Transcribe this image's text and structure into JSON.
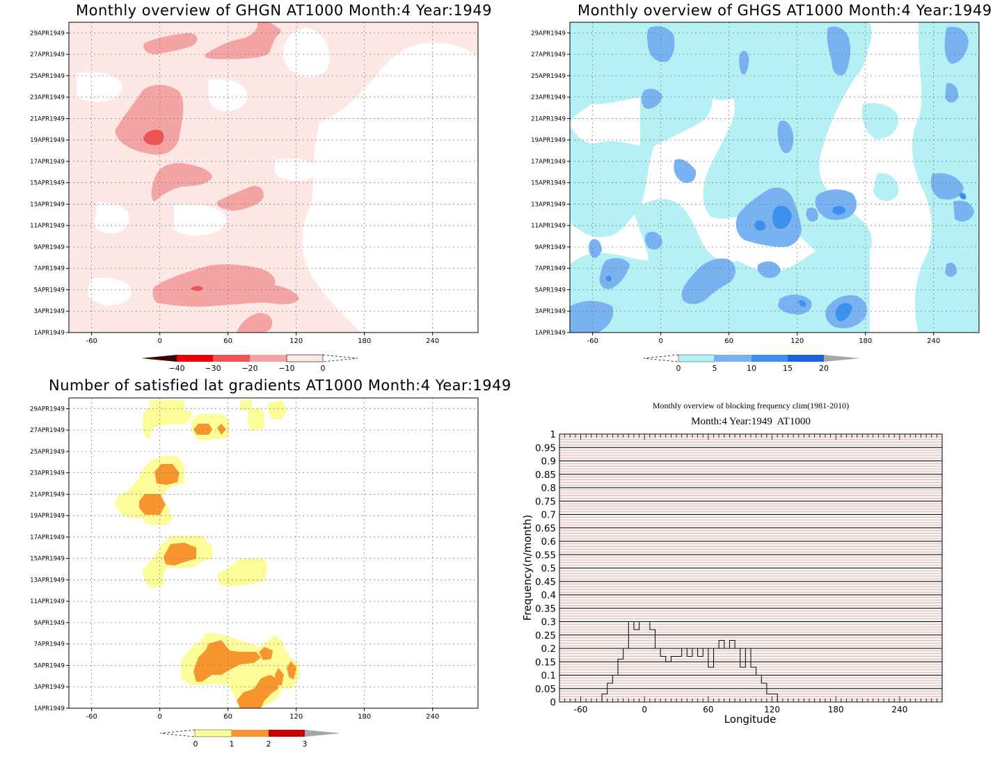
{
  "page": {
    "background": "#ffffff"
  },
  "panels": {
    "ghgn": {
      "title": "Monthly overview of GHGN AT1000 Month:4 Year:1949",
      "colorbar": {
        "labels": [
          "−40",
          "−30",
          "−20",
          "−10",
          "0"
        ],
        "colors": [
          "#3b0000",
          "#e8000b",
          "#ef5454",
          "#f5a4a4",
          "#fde8e6"
        ]
      }
    },
    "ghgs": {
      "title": "Monthly overview of GHGS AT1000 Month:4 Year:1949",
      "colorbar": {
        "labels": [
          "0",
          "5",
          "10",
          "15",
          "20"
        ],
        "colors": [
          "#b5f0f5",
          "#78b2f0",
          "#3d8ff0",
          "#1e64dc",
          "#a7a7a7"
        ]
      }
    },
    "gradients": {
      "title": "Number of satisfied lat gradients AT1000 Month:4 Year:1949",
      "colorbar": {
        "labels": [
          "0",
          "1",
          "2",
          "3"
        ],
        "colors": [
          "#fcfc99",
          "#f7962e",
          "#c80000",
          "#a7a7a7"
        ]
      }
    },
    "blocking": {
      "title": "Monthly overview of blocking frequency clim(1981-2010)",
      "subtitle": "Month:4 Year:1949  AT1000"
    }
  },
  "hovmoller_axes": {
    "x_ticks": [
      "-60",
      "0",
      "60",
      "120",
      "180",
      "240"
    ],
    "x_tick_values": [
      -60,
      0,
      60,
      120,
      180,
      240
    ],
    "xlim": [
      -80,
      280
    ],
    "y_ticks": [
      "1APR1949",
      "3APR1949",
      "5APR1949",
      "7APR1949",
      "9APR1949",
      "11APR1949",
      "13APR1949",
      "15APR1949",
      "17APR1949",
      "19APR1949",
      "21APR1949",
      "23APR1949",
      "25APR1949",
      "27APR1949",
      "29APR1949"
    ],
    "y_tick_days": [
      1,
      3,
      5,
      7,
      9,
      11,
      13,
      15,
      17,
      19,
      21,
      23,
      25,
      27,
      29
    ],
    "ylim": [
      1,
      30
    ]
  },
  "chart_data": [
    {
      "type": "heatmap",
      "title": "Monthly overview of GHGN AT1000 Month:4 Year:1949",
      "variable": "GHGN",
      "xlim": [
        -80,
        280
      ],
      "ylim": [
        "1APR1949",
        "30APR1949"
      ],
      "levels": [
        -40,
        -30,
        -20,
        -10,
        0
      ],
      "regions": [
        {
          "level": "-20 to -10",
          "lon": [
            -40,
            20
          ],
          "date": [
            "19APR1949",
            "22APR1949"
          ]
        },
        {
          "level": "-30 to -20",
          "lon": [
            -15,
            0
          ],
          "date": [
            "19APR1949",
            "20APR1949"
          ]
        },
        {
          "level": "-20 to -10",
          "lon": [
            0,
            120
          ],
          "date": [
            "2APR1949",
            "7APR1949"
          ]
        },
        {
          "level": "-20 to -10",
          "lon": [
            5,
            90
          ],
          "date": [
            "13APR1949",
            "16APR1949"
          ]
        },
        {
          "level": "-20 to -10",
          "lon": [
            -15,
            110
          ],
          "date": [
            "27APR1949",
            "30APR1949"
          ]
        }
      ]
    },
    {
      "type": "heatmap",
      "title": "Monthly overview of GHGS AT1000 Month:4 Year:1949",
      "variable": "GHGS",
      "xlim": [
        -80,
        280
      ],
      "ylim": [
        "1APR1949",
        "30APR1949"
      ],
      "levels": [
        0,
        5,
        10,
        15,
        20
      ],
      "regions": [
        {
          "level": "5 to 10",
          "lon": [
            70,
            130
          ],
          "date": [
            "10APR1949",
            "14APR1949"
          ]
        },
        {
          "level": "10 to 15",
          "lon": [
            100,
            115
          ],
          "date": [
            "11APR1949",
            "12APR1949"
          ]
        },
        {
          "level": "5 to 10",
          "lon": [
            150,
            180
          ],
          "date": [
            "1APR1949",
            "3APR1949"
          ]
        },
        {
          "level": "10 to 15",
          "lon": [
            155,
            170
          ],
          "date": [
            "2APR1949",
            "3APR1949"
          ]
        },
        {
          "level": "5 to 10",
          "lon": [
            -10,
            15
          ],
          "date": [
            "26APR1949",
            "30APR1949"
          ]
        }
      ]
    },
    {
      "type": "heatmap",
      "title": "Number of satisfied lat gradients AT1000 Month:4 Year:1949",
      "variable": "satisfied lat gradients",
      "xlim": [
        -80,
        280
      ],
      "ylim": [
        "1APR1949",
        "30APR1949"
      ],
      "levels": [
        0,
        1,
        2,
        3
      ],
      "regions": [
        {
          "level": "0 to 1",
          "lon": [
            -40,
            10
          ],
          "date": [
            "19APR1949",
            "24APR1949"
          ]
        },
        {
          "level": "1 to 2",
          "lon": [
            -15,
            5
          ],
          "date": [
            "19APR1949",
            "21APR1949"
          ]
        },
        {
          "level": "1 to 2",
          "lon": [
            -5,
            15
          ],
          "date": [
            "22APR1949",
            "24APR1949"
          ]
        },
        {
          "level": "1 to 2",
          "lon": [
            5,
            30
          ],
          "date": [
            "15APR1949",
            "16APR1949"
          ]
        },
        {
          "level": "1 to 2",
          "lon": [
            30,
            95
          ],
          "date": [
            "4APR1949",
            "7APR1949"
          ]
        },
        {
          "level": "1 to 2",
          "lon": [
            70,
            115
          ],
          "date": [
            "1APR1949",
            "5APR1949"
          ]
        },
        {
          "level": "0 to 1",
          "lon": [
            35,
            90
          ],
          "date": [
            "12APR1949",
            "16APR1949"
          ]
        },
        {
          "level": "0 to 1",
          "lon": [
            -10,
            110
          ],
          "date": [
            "26APR1949",
            "30APR1949"
          ]
        }
      ]
    },
    {
      "type": "line",
      "title": "Monthly overview of blocking frequency clim(1981-2010)",
      "subtitle": "Month:4 Year:1949  AT1000",
      "xlabel": "Longitude",
      "ylabel": "Frequency(n/month)",
      "x_ticks": [
        "-60",
        "0",
        "60",
        "120",
        "180",
        "240"
      ],
      "xlim": [
        -80,
        280
      ],
      "y_ticks": [
        "0",
        "0.05",
        "0.1",
        "0.15",
        "0.2",
        "0.25",
        "0.3",
        "0.35",
        "0.4",
        "0.45",
        "0.5",
        "0.55",
        "0.6",
        "0.65",
        "0.7",
        "0.75",
        "0.8",
        "0.85",
        "0.9",
        "0.95",
        "1"
      ],
      "ylim": [
        0,
        1
      ],
      "x": [
        -80,
        -45,
        -40,
        -35,
        -30,
        -25,
        -20,
        -15,
        -10,
        -5,
        0,
        5,
        10,
        15,
        20,
        25,
        30,
        35,
        40,
        45,
        50,
        55,
        60,
        65,
        70,
        75,
        80,
        85,
        90,
        95,
        100,
        105,
        110,
        115,
        120,
        125,
        280
      ],
      "values": [
        0,
        0,
        0.03,
        0.07,
        0.1,
        0.16,
        0.2,
        0.3,
        0.27,
        0.3,
        0.3,
        0.27,
        0.2,
        0.17,
        0.15,
        0.17,
        0.17,
        0.2,
        0.17,
        0.2,
        0.17,
        0.2,
        0.13,
        0.2,
        0.23,
        0.2,
        0.23,
        0.2,
        0.13,
        0.2,
        0.13,
        0.1,
        0.07,
        0.03,
        0.03,
        0,
        0
      ]
    }
  ]
}
